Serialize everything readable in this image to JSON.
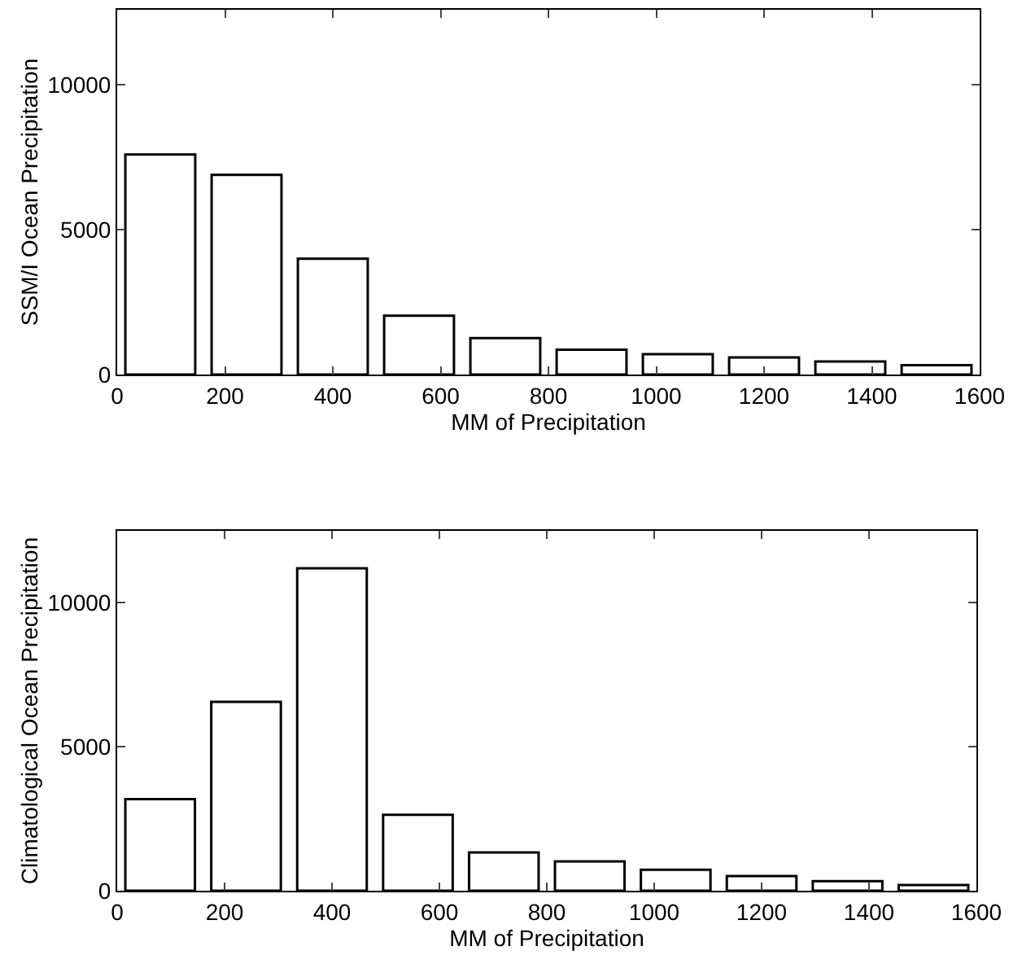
{
  "chart_data": [
    {
      "type": "bar",
      "xlabel": "MM of Precipitation",
      "ylabel": "SSM/I Ocean Precipitation",
      "x": [
        80,
        240,
        400,
        560,
        720,
        880,
        1040,
        1200,
        1360,
        1520
      ],
      "values": [
        7600,
        6900,
        4000,
        2030,
        1260,
        860,
        700,
        590,
        450,
        320
      ],
      "color": "#ffffff",
      "xlim": [
        0,
        1600
      ],
      "xticks": [
        0,
        200,
        400,
        600,
        800,
        1000,
        1200,
        1400,
        1600
      ],
      "ylim": [
        0,
        12600
      ],
      "yticks": [
        0,
        5000,
        10000
      ],
      "grid": false
    },
    {
      "type": "bar",
      "xlabel": "MM of Precipitation",
      "ylabel": "Climatological Ocean Precipitation",
      "x": [
        80,
        240,
        400,
        560,
        720,
        880,
        1040,
        1200,
        1360,
        1520
      ],
      "values": [
        3180,
        6560,
        11200,
        2640,
        1330,
        1020,
        730,
        510,
        330,
        200
      ],
      "color": "#ffffff",
      "xlim": [
        0,
        1600
      ],
      "xticks": [
        0,
        200,
        400,
        600,
        800,
        1000,
        1200,
        1400,
        1600
      ],
      "ylim": [
        0,
        12500
      ],
      "yticks": [
        0,
        5000,
        10000
      ],
      "grid": false
    }
  ]
}
